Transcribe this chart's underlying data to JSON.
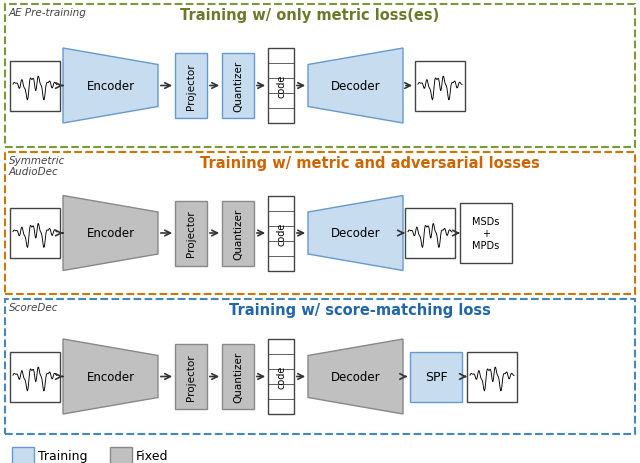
{
  "bg_color": "#ffffff",
  "row1_label": "AE Pre-training",
  "row2_label_1": "Symmetric",
  "row2_label_2": "AudioDec",
  "row3_label": "ScoreDec",
  "title1": "Training w/ only metric loss(es)",
  "title2": "Training w/ metric and adversarial losses",
  "title3": "Training w/ score-matching loss",
  "title1_color": "#6B7A2A",
  "title2_color": "#CC6600",
  "title3_color": "#2266AA",
  "blue": "#C8DCF0",
  "gray": "#C0C0C0",
  "white": "#FFFFFF",
  "blue_border": "#6699CC",
  "gray_border": "#888888",
  "dark_border": "#444444",
  "border1_color": "#7A9A3A",
  "border2_color": "#CC7700",
  "border3_color": "#4488BB",
  "legend_blue": "#C8DCF0",
  "legend_gray": "#C0C0C0"
}
